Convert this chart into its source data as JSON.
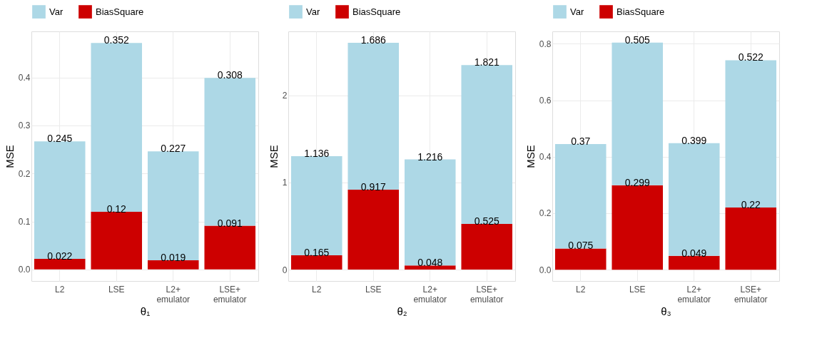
{
  "chart_data": [
    {
      "type": "bar",
      "stacked": true,
      "categories": [
        "L2",
        "LSE",
        "L2+\nemulator",
        "LSE+\nemulator"
      ],
      "xlabel": "θ₁",
      "ylabel": "MSE",
      "ylim": [
        -0.024,
        0.496
      ],
      "yticks": [
        {
          "value": 0,
          "label": "0.0"
        },
        {
          "value": 0.1,
          "label": "0.1"
        },
        {
          "value": 0.2,
          "label": "0.2"
        },
        {
          "value": 0.3,
          "label": "0.3"
        },
        {
          "value": 0.4,
          "label": "0.4"
        }
      ],
      "grid": true,
      "legend": "top",
      "data_labels": true,
      "series": [
        {
          "name": "BiasSquare",
          "color": "#cd0000",
          "values": [
            0.022,
            0.12,
            0.019,
            0.091
          ]
        },
        {
          "name": "Var",
          "color": "#add8e6",
          "values": [
            0.245,
            0.352,
            0.227,
            0.308
          ]
        }
      ]
    },
    {
      "type": "bar",
      "stacked": true,
      "categories": [
        "L2",
        "LSE",
        "L2+\nemulator",
        "LSE+\nemulator"
      ],
      "xlabel": "θ₂",
      "ylabel": "MSE",
      "ylim": [
        -0.13,
        2.733
      ],
      "yticks": [
        0,
        1,
        2
      ],
      "grid": true,
      "legend": "top",
      "data_labels": true,
      "series": [
        {
          "name": "BiasSquare",
          "color": "#cd0000",
          "values": [
            0.165,
            0.917,
            0.048,
            0.525
          ]
        },
        {
          "name": "Var",
          "color": "#add8e6",
          "values": [
            1.136,
            1.686,
            1.216,
            1.821
          ]
        }
      ]
    },
    {
      "type": "bar",
      "stacked": true,
      "categories": [
        "L2",
        "LSE",
        "L2+\nemulator",
        "LSE+\nemulator"
      ],
      "xlabel": "θ₃",
      "ylabel": "MSE",
      "ylim": [
        -0.04,
        0.844
      ],
      "yticks": [
        {
          "value": 0,
          "label": "0.0"
        },
        {
          "value": 0.2,
          "label": "0.2"
        },
        {
          "value": 0.4,
          "label": "0.4"
        },
        {
          "value": 0.6,
          "label": "0.6"
        },
        {
          "value": 0.8,
          "label": "0.8"
        }
      ],
      "grid": true,
      "legend": "top",
      "data_labels": true,
      "series": [
        {
          "name": "BiasSquare",
          "color": "#cd0000",
          "values": [
            0.075,
            0.299,
            0.049,
            0.22
          ]
        },
        {
          "name": "Var",
          "color": "#add8e6",
          "values": [
            0.37,
            0.505,
            0.399,
            0.522
          ]
        }
      ]
    }
  ]
}
